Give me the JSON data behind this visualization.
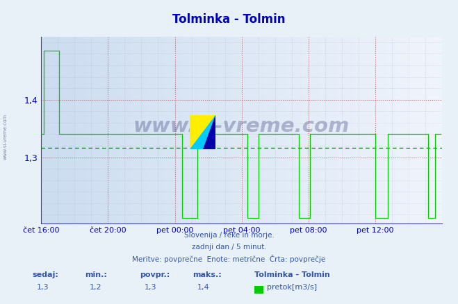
{
  "title": "Tolminka - Tolmin",
  "title_color": "#0000bb",
  "bg_color": "#e8f0f8",
  "plot_bg_color": "#ffffff",
  "line_color": "#00cc00",
  "avg_line_color": "#009900",
  "avg_value": 1.317,
  "ylim": [
    1.185,
    1.51
  ],
  "yticks": [
    1.3,
    1.4
  ],
  "grid_color_major_red": "#dd8888",
  "grid_color_minor_gray": "#aaaacc",
  "watermark_color": "#1a2060",
  "footer_color": "#3355aa",
  "stats_label_color": "#3355aa",
  "x_tick_labels": [
    "čet 16:00",
    "čet 20:00",
    "pet 00:00",
    "pet 04:00",
    "pet 08:00",
    "pet 12:00"
  ],
  "x_tick_positions": [
    0,
    48,
    96,
    144,
    192,
    240
  ],
  "n_points": 288,
  "footer_lines": [
    "Slovenija / reke in morje.",
    "zadnji dan / 5 minut.",
    "Meritve: povprečne  Enote: metrične  Črta: povprečje"
  ],
  "stats_labels": [
    "sedaj:",
    "min.:",
    "povpr.:",
    "maks.:"
  ],
  "stats_values": [
    "1,3",
    "1,2",
    "1,3",
    "1,4"
  ],
  "legend_title": "Tolminka - Tolmin",
  "legend_sub": "pretok[m3/s]",
  "legend_color": "#00cc00"
}
